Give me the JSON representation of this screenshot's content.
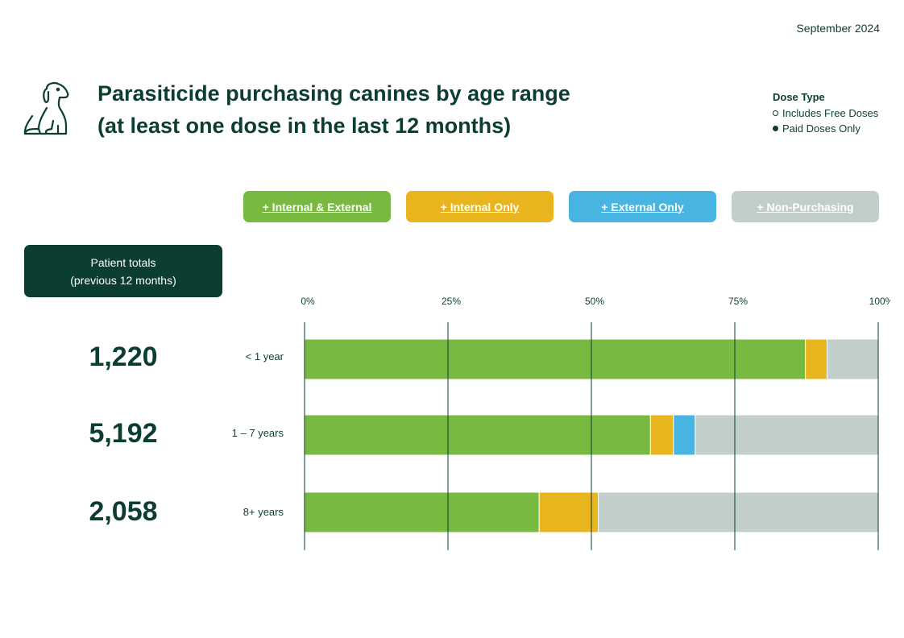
{
  "report_date": "September 2024",
  "title_line1": "Parasiticide purchasing canines by age range",
  "title_line2": "(at least one dose in the last 12 months)",
  "dose_type": {
    "heading": "Dose Type",
    "options": [
      {
        "label": "Includes Free Doses",
        "selected": false
      },
      {
        "label": "Paid Doses Only",
        "selected": true
      }
    ]
  },
  "filters": [
    {
      "label": "+ Internal & External",
      "color": "#78b942"
    },
    {
      "label": "+ Internal Only",
      "color": "#e8b51f"
    },
    {
      "label": "+ External Only",
      "color": "#48b4e2"
    },
    {
      "label": "+ Non-Purchasing",
      "color": "#c2ceca"
    }
  ],
  "totals_header": {
    "line1": "Patient totals",
    "line2": "(previous 12 months)"
  },
  "patient_totals": [
    "1,220",
    "5,192",
    "2,058"
  ],
  "chart_data": {
    "type": "bar",
    "orientation": "horizontal",
    "stacked": true,
    "categories": [
      "< 1 year",
      "1 – 7 years",
      "8+ years"
    ],
    "x_ticks": [
      "0%",
      "25%",
      "50%",
      "75%",
      "100%"
    ],
    "xlim": [
      0,
      100
    ],
    "grid": true,
    "series": [
      {
        "name": "Internal & External",
        "color": "#78b942",
        "values": [
          87.3,
          60.3,
          40.9
        ]
      },
      {
        "name": "Internal Only",
        "color": "#e8b51f",
        "values": [
          3.8,
          4.0,
          10.3
        ]
      },
      {
        "name": "External Only",
        "color": "#48b4e2",
        "values": [
          0,
          3.8,
          0
        ]
      },
      {
        "name": "Non-Purchasing",
        "color": "#c2ceca",
        "values": [
          8.9,
          31.9,
          48.8
        ]
      }
    ]
  }
}
